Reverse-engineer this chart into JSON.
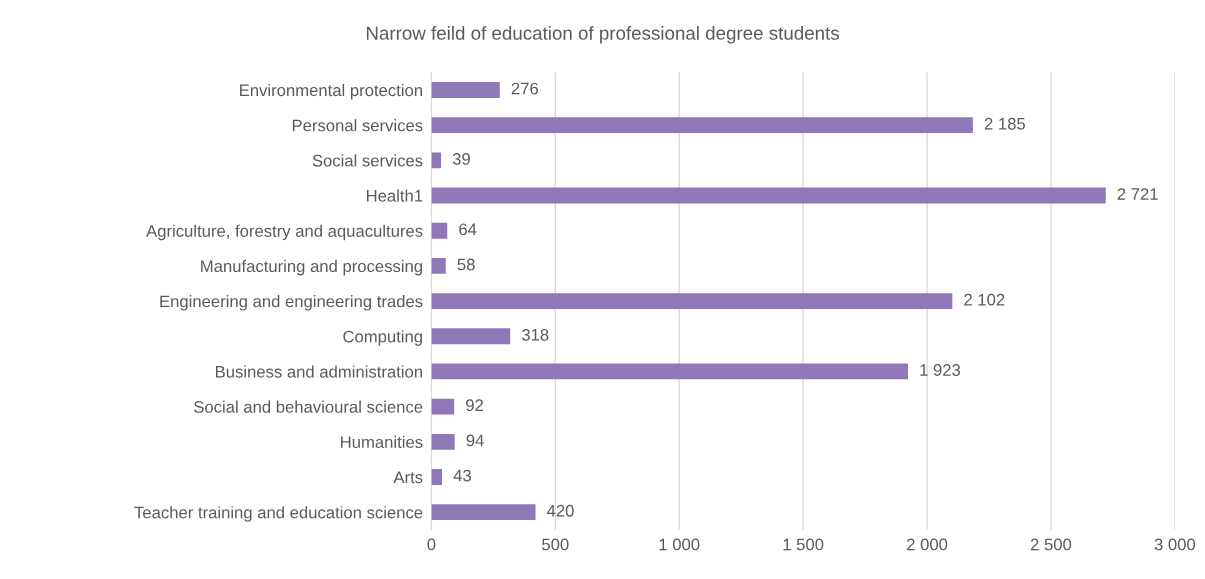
{
  "chart_data": {
    "type": "bar",
    "orientation": "horizontal",
    "title": "Narrow feild of education of professional degree students",
    "categories": [
      "Environmental protection",
      "Personal services",
      "Social services",
      "Health1",
      "Agriculture, forestry and aquacultures",
      "Manufacturing and processing",
      "Engineering and engineering trades",
      "Computing",
      "Business and administration",
      "Social and behavioural science",
      "Humanities",
      "Arts",
      "Teacher training and education science"
    ],
    "values": [
      276,
      2185,
      39,
      2721,
      64,
      58,
      2102,
      318,
      1923,
      92,
      94,
      43,
      420
    ],
    "value_labels": [
      "276",
      "2 185",
      "39",
      "2 721",
      "64",
      "58",
      "2 102",
      "318",
      "1 923",
      "92",
      "94",
      "43",
      "420"
    ],
    "color": "#8e78b8",
    "xlim": [
      0,
      3000
    ],
    "xticks": [
      0,
      500,
      {
        "value": 1000,
        "label": "1 000"
      },
      {
        "value": 1500,
        "label": "1 500"
      },
      {
        "value": 2000,
        "label": "2 000"
      },
      {
        "value": 2500,
        "label": "2 500"
      },
      {
        "value": 3000,
        "label": "3 000"
      }
    ],
    "grid": "x",
    "legend": false
  }
}
